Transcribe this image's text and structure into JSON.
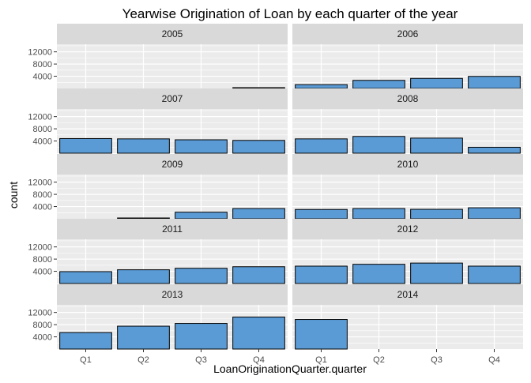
{
  "chart_data": {
    "type": "bar",
    "title": "Yearwise Origination of Loan by each quarter of the year",
    "xlabel": "LoanOriginationQuarter.quarter",
    "ylabel": "count",
    "categories": [
      "Q1",
      "Q2",
      "Q3",
      "Q4"
    ],
    "yticks": [
      4000,
      8000,
      12000
    ],
    "ytick_labels": [
      "4000",
      "8000",
      "12000"
    ],
    "ylim": [
      0,
      14500
    ],
    "grid": true,
    "facets": [
      {
        "year": "2005",
        "values": [
          null,
          null,
          null,
          22
        ]
      },
      {
        "year": "2006",
        "values": [
          1250,
          2650,
          3300,
          3950
        ]
      },
      {
        "year": "2007",
        "values": [
          4800,
          4700,
          4400,
          4200
        ]
      },
      {
        "year": "2008",
        "values": [
          4700,
          5500,
          4950,
          1950
        ]
      },
      {
        "year": "2009",
        "values": [
          null,
          150,
          2150,
          3350
        ]
      },
      {
        "year": "2010",
        "values": [
          3050,
          3350,
          3100,
          3600
        ]
      },
      {
        "year": "2011",
        "values": [
          3900,
          4500,
          5000,
          5500
        ]
      },
      {
        "year": "2012",
        "values": [
          5700,
          6300,
          6700,
          5700
        ]
      },
      {
        "year": "2013",
        "values": [
          5400,
          7500,
          8400,
          10500
        ]
      },
      {
        "year": "2014",
        "values": [
          9700,
          null,
          null,
          null
        ]
      }
    ]
  },
  "style": {
    "bar_fill": "#5b9bd5",
    "bar_stroke": "#000000",
    "panel_bg": "#ebebeb",
    "strip_bg": "#d9d9d9",
    "grid_color": "#ffffff",
    "text_color": "#4d4d4d",
    "title_color": "#000000"
  }
}
